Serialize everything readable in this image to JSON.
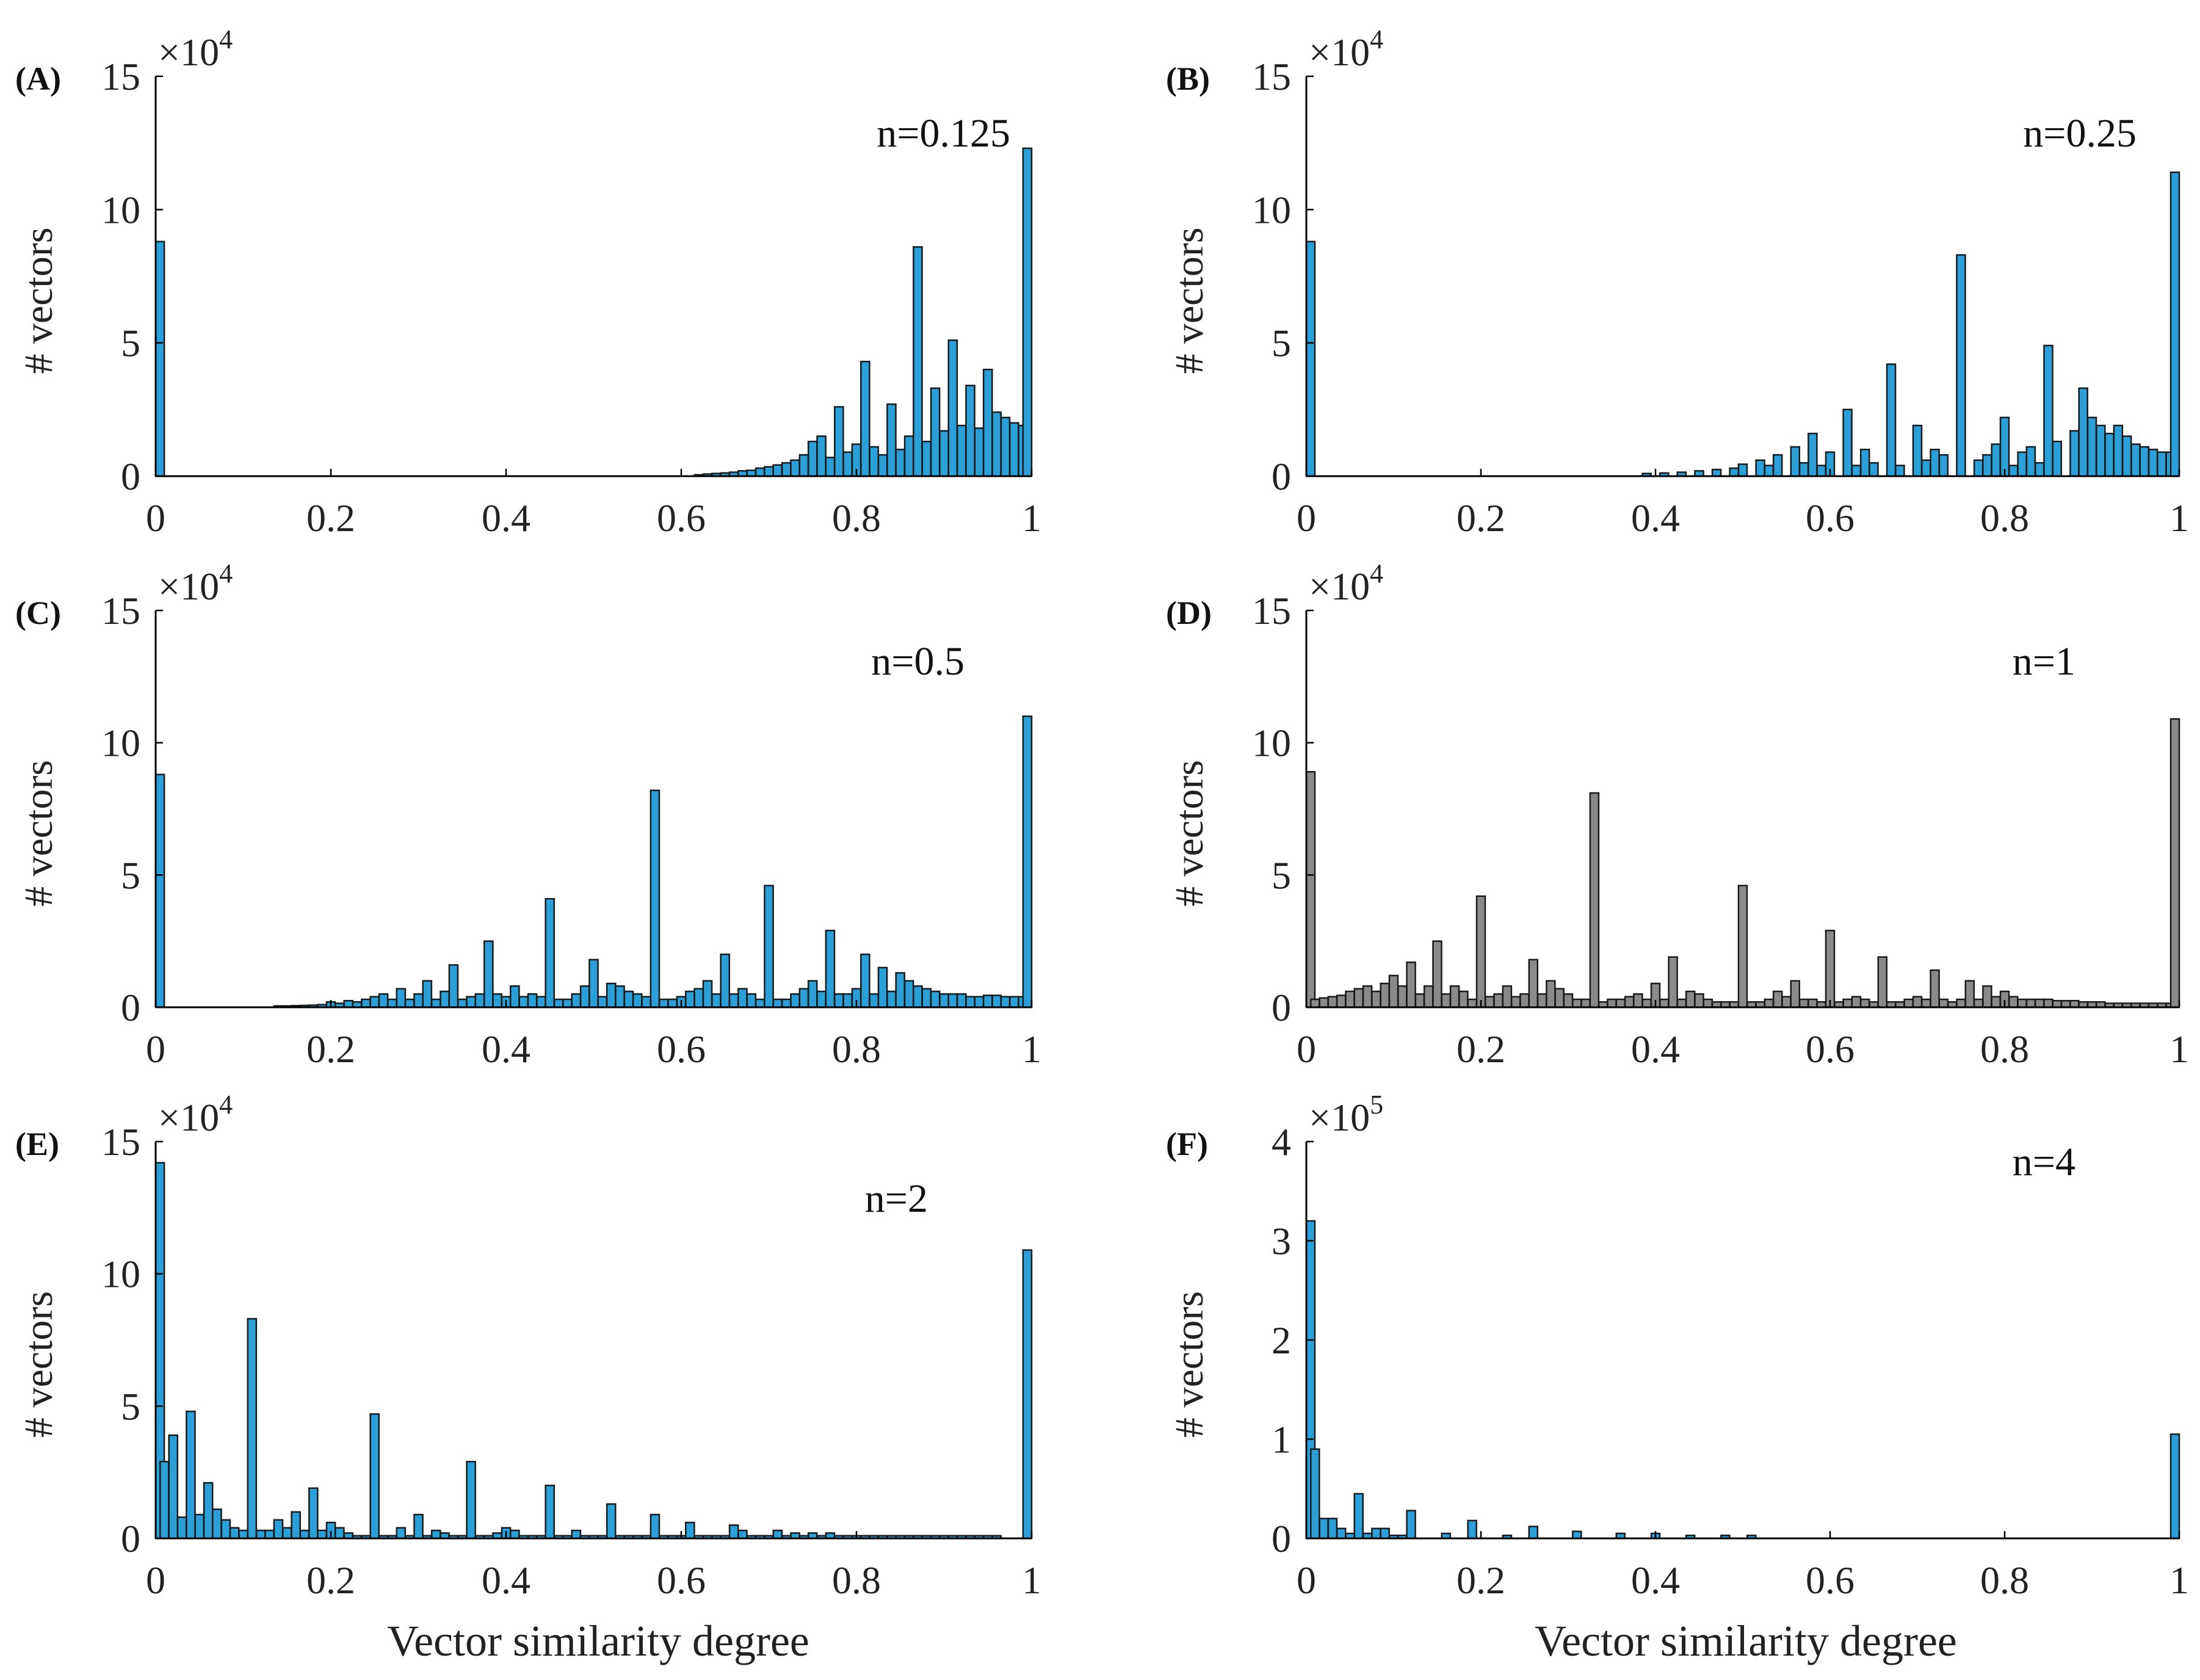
{
  "figure": {
    "xlabel": "Vector similarity degree",
    "ylabel": "# vectors",
    "bar_stroke": "#1a1a1a",
    "axis_color": "#000000"
  },
  "chart_data": [
    {
      "type": "bar",
      "panel": "(A)",
      "annotation": "n=0.125",
      "title": "",
      "xlabel": "",
      "ylabel": "# vectors",
      "multiplier_base": "×10",
      "multiplier_exp": "4",
      "xlim": [
        0,
        1
      ],
      "ylim": [
        0,
        15
      ],
      "xticks": [
        "0",
        "0.2",
        "0.4",
        "0.6",
        "0.8",
        "1"
      ],
      "yticks": [
        "0",
        "5",
        "10",
        "15"
      ],
      "color": "#2a9fd8",
      "x": [
        0.0,
        0.62,
        0.63,
        0.64,
        0.65,
        0.66,
        0.67,
        0.68,
        0.69,
        0.7,
        0.71,
        0.72,
        0.73,
        0.74,
        0.75,
        0.76,
        0.77,
        0.78,
        0.79,
        0.8,
        0.81,
        0.82,
        0.83,
        0.84,
        0.85,
        0.86,
        0.87,
        0.88,
        0.89,
        0.9,
        0.91,
        0.92,
        0.93,
        0.94,
        0.95,
        0.96,
        0.97,
        0.98,
        0.99,
        1.0
      ],
      "values": [
        8.8,
        0.05,
        0.08,
        0.1,
        0.12,
        0.15,
        0.2,
        0.22,
        0.3,
        0.35,
        0.42,
        0.5,
        0.6,
        0.8,
        1.3,
        1.5,
        0.7,
        2.6,
        0.9,
        1.2,
        4.3,
        1.1,
        0.8,
        2.7,
        1.0,
        1.5,
        8.6,
        1.3,
        3.3,
        1.7,
        5.1,
        1.9,
        3.4,
        1.8,
        4.0,
        2.4,
        2.2,
        2.0,
        1.9,
        12.3
      ]
    },
    {
      "type": "bar",
      "panel": "(B)",
      "annotation": "n=0.25",
      "title": "",
      "xlabel": "",
      "ylabel": "# vectors",
      "multiplier_base": "×10",
      "multiplier_exp": "4",
      "xlim": [
        0,
        1
      ],
      "ylim": [
        0,
        15
      ],
      "xticks": [
        "0",
        "0.2",
        "0.4",
        "0.6",
        "0.8",
        "1"
      ],
      "yticks": [
        "0",
        "5",
        "10",
        "15"
      ],
      "color": "#2a9fd8",
      "x": [
        0.0,
        0.39,
        0.41,
        0.43,
        0.45,
        0.47,
        0.49,
        0.5,
        0.52,
        0.53,
        0.54,
        0.56,
        0.57,
        0.58,
        0.59,
        0.6,
        0.62,
        0.63,
        0.64,
        0.65,
        0.67,
        0.68,
        0.7,
        0.71,
        0.72,
        0.73,
        0.75,
        0.77,
        0.78,
        0.79,
        0.8,
        0.81,
        0.82,
        0.83,
        0.84,
        0.85,
        0.86,
        0.88,
        0.89,
        0.9,
        0.91,
        0.92,
        0.93,
        0.94,
        0.95,
        0.96,
        0.97,
        0.98,
        0.99,
        1.0
      ],
      "values": [
        8.8,
        0.1,
        0.12,
        0.15,
        0.2,
        0.25,
        0.3,
        0.45,
        0.6,
        0.4,
        0.8,
        1.1,
        0.5,
        1.6,
        0.4,
        0.9,
        2.5,
        0.4,
        1.0,
        0.5,
        4.2,
        0.4,
        1.9,
        0.6,
        1.0,
        0.8,
        8.3,
        0.6,
        0.8,
        1.2,
        2.2,
        0.4,
        0.9,
        1.1,
        0.5,
        4.9,
        1.3,
        1.7,
        3.3,
        2.2,
        1.9,
        1.6,
        1.9,
        1.5,
        1.2,
        1.1,
        1.0,
        0.9,
        0.9,
        11.4
      ]
    },
    {
      "type": "bar",
      "panel": "(C)",
      "annotation": "n=0.5",
      "title": "",
      "xlabel": "",
      "ylabel": "# vectors",
      "multiplier_base": "×10",
      "multiplier_exp": "4",
      "xlim": [
        0,
        1
      ],
      "ylim": [
        0,
        15
      ],
      "xticks": [
        "0",
        "0.2",
        "0.4",
        "0.6",
        "0.8",
        "1"
      ],
      "yticks": [
        "0",
        "5",
        "10",
        "15"
      ],
      "color": "#2a9fd8",
      "x": [
        0.0,
        0.14,
        0.15,
        0.16,
        0.17,
        0.18,
        0.19,
        0.2,
        0.21,
        0.22,
        0.23,
        0.24,
        0.25,
        0.26,
        0.27,
        0.28,
        0.29,
        0.3,
        0.31,
        0.32,
        0.33,
        0.34,
        0.35,
        0.36,
        0.37,
        0.38,
        0.39,
        0.4,
        0.41,
        0.42,
        0.43,
        0.44,
        0.45,
        0.46,
        0.47,
        0.48,
        0.49,
        0.5,
        0.51,
        0.52,
        0.53,
        0.54,
        0.55,
        0.56,
        0.57,
        0.58,
        0.59,
        0.6,
        0.61,
        0.62,
        0.63,
        0.64,
        0.65,
        0.66,
        0.67,
        0.68,
        0.69,
        0.7,
        0.71,
        0.72,
        0.73,
        0.74,
        0.75,
        0.76,
        0.77,
        0.78,
        0.79,
        0.8,
        0.81,
        0.82,
        0.83,
        0.84,
        0.85,
        0.86,
        0.87,
        0.88,
        0.89,
        0.9,
        0.91,
        0.92,
        0.93,
        0.94,
        0.95,
        0.96,
        0.97,
        0.98,
        0.99,
        1.0
      ],
      "values": [
        8.8,
        0.05,
        0.05,
        0.06,
        0.07,
        0.08,
        0.1,
        0.2,
        0.15,
        0.25,
        0.2,
        0.3,
        0.4,
        0.5,
        0.3,
        0.7,
        0.3,
        0.5,
        1.0,
        0.3,
        0.6,
        1.6,
        0.3,
        0.4,
        0.5,
        2.5,
        0.5,
        0.4,
        0.8,
        0.4,
        0.5,
        0.4,
        4.1,
        0.3,
        0.3,
        0.5,
        0.8,
        1.8,
        0.4,
        0.9,
        0.8,
        0.6,
        0.5,
        0.4,
        8.2,
        0.3,
        0.3,
        0.4,
        0.6,
        0.7,
        1.0,
        0.5,
        2.0,
        0.5,
        0.7,
        0.5,
        0.3,
        4.6,
        0.3,
        0.3,
        0.5,
        0.7,
        1.0,
        0.6,
        2.9,
        0.5,
        0.5,
        0.7,
        2.0,
        0.5,
        1.5,
        0.6,
        1.3,
        1.0,
        0.8,
        0.7,
        0.6,
        0.5,
        0.5,
        0.5,
        0.4,
        0.4,
        0.45,
        0.45,
        0.4,
        0.4,
        0.4,
        11.0
      ]
    },
    {
      "type": "bar",
      "panel": "(D)",
      "annotation": "n=1",
      "title": "",
      "xlabel": "",
      "ylabel": "# vectors",
      "multiplier_base": "×10",
      "multiplier_exp": "4",
      "xlim": [
        0,
        1
      ],
      "ylim": [
        0,
        15
      ],
      "xticks": [
        "0",
        "0.2",
        "0.4",
        "0.6",
        "0.8",
        "1"
      ],
      "yticks": [
        "0",
        "5",
        "10",
        "15"
      ],
      "color": "#8a8a8a",
      "x": [
        0.0,
        0.01,
        0.02,
        0.03,
        0.04,
        0.05,
        0.06,
        0.07,
        0.08,
        0.09,
        0.1,
        0.11,
        0.12,
        0.13,
        0.14,
        0.15,
        0.16,
        0.17,
        0.18,
        0.19,
        0.2,
        0.21,
        0.22,
        0.23,
        0.24,
        0.25,
        0.26,
        0.27,
        0.28,
        0.29,
        0.3,
        0.31,
        0.32,
        0.33,
        0.34,
        0.35,
        0.36,
        0.37,
        0.38,
        0.39,
        0.4,
        0.41,
        0.42,
        0.43,
        0.44,
        0.45,
        0.46,
        0.47,
        0.48,
        0.49,
        0.5,
        0.51,
        0.52,
        0.53,
        0.54,
        0.55,
        0.56,
        0.57,
        0.58,
        0.59,
        0.6,
        0.61,
        0.62,
        0.63,
        0.64,
        0.65,
        0.66,
        0.67,
        0.68,
        0.69,
        0.7,
        0.71,
        0.72,
        0.73,
        0.74,
        0.75,
        0.76,
        0.77,
        0.78,
        0.79,
        0.8,
        0.81,
        0.82,
        0.83,
        0.84,
        0.85,
        0.86,
        0.87,
        0.88,
        0.89,
        0.9,
        0.91,
        0.92,
        0.93,
        0.94,
        0.95,
        0.96,
        0.97,
        0.98,
        0.99,
        1.0
      ],
      "values": [
        8.9,
        0.3,
        0.35,
        0.4,
        0.45,
        0.6,
        0.7,
        0.8,
        0.6,
        0.9,
        1.2,
        0.8,
        1.7,
        0.5,
        0.8,
        2.5,
        0.5,
        0.8,
        0.6,
        0.3,
        4.2,
        0.4,
        0.5,
        0.8,
        0.4,
        0.5,
        1.8,
        0.5,
        1.0,
        0.7,
        0.5,
        0.3,
        0.3,
        8.1,
        0.2,
        0.3,
        0.3,
        0.4,
        0.5,
        0.3,
        0.9,
        0.3,
        1.9,
        0.3,
        0.6,
        0.5,
        0.3,
        0.2,
        0.2,
        0.2,
        4.6,
        0.2,
        0.2,
        0.3,
        0.6,
        0.4,
        1.0,
        0.3,
        0.3,
        0.2,
        2.9,
        0.2,
        0.3,
        0.4,
        0.3,
        0.2,
        1.9,
        0.2,
        0.2,
        0.3,
        0.4,
        0.3,
        1.4,
        0.3,
        0.2,
        0.3,
        1.0,
        0.3,
        0.8,
        0.4,
        0.6,
        0.4,
        0.3,
        0.3,
        0.3,
        0.3,
        0.25,
        0.25,
        0.25,
        0.2,
        0.2,
        0.2,
        0.15,
        0.15,
        0.15,
        0.15,
        0.15,
        0.15,
        0.15,
        0.15,
        10.9
      ]
    },
    {
      "type": "bar",
      "panel": "(E)",
      "annotation": "n=2",
      "title": "",
      "xlabel": "Vector similarity degree",
      "ylabel": "# vectors",
      "multiplier_base": "×10",
      "multiplier_exp": "4",
      "xlim": [
        0,
        1
      ],
      "ylim": [
        0,
        15
      ],
      "xticks": [
        "0",
        "0.2",
        "0.4",
        "0.6",
        "0.8",
        "1"
      ],
      "yticks": [
        "0",
        "5",
        "10",
        "15"
      ],
      "color": "#2a9fd8",
      "x": [
        0.0,
        0.01,
        0.02,
        0.03,
        0.04,
        0.05,
        0.06,
        0.07,
        0.08,
        0.09,
        0.1,
        0.11,
        0.12,
        0.13,
        0.14,
        0.15,
        0.16,
        0.17,
        0.18,
        0.19,
        0.2,
        0.21,
        0.22,
        0.23,
        0.24,
        0.25,
        0.26,
        0.27,
        0.28,
        0.29,
        0.3,
        0.31,
        0.32,
        0.33,
        0.34,
        0.35,
        0.36,
        0.37,
        0.38,
        0.39,
        0.4,
        0.41,
        0.42,
        0.43,
        0.44,
        0.45,
        0.46,
        0.47,
        0.48,
        0.49,
        0.5,
        0.51,
        0.52,
        0.53,
        0.54,
        0.55,
        0.56,
        0.57,
        0.58,
        0.59,
        0.6,
        0.61,
        0.62,
        0.63,
        0.64,
        0.65,
        0.66,
        0.67,
        0.68,
        0.69,
        0.7,
        0.71,
        0.72,
        0.73,
        0.74,
        0.75,
        0.76,
        0.77,
        0.78,
        0.79,
        0.8,
        0.81,
        0.82,
        0.83,
        0.84,
        0.85,
        0.86,
        0.87,
        0.88,
        0.89,
        0.9,
        0.91,
        0.92,
        0.93,
        0.94,
        0.95,
        0.96,
        1.0
      ],
      "values": [
        14.2,
        2.9,
        3.9,
        0.8,
        4.8,
        0.9,
        2.1,
        1.1,
        0.7,
        0.4,
        0.3,
        8.3,
        0.3,
        0.3,
        0.7,
        0.4,
        1.0,
        0.3,
        1.9,
        0.3,
        0.6,
        0.4,
        0.2,
        0.1,
        0.1,
        4.7,
        0.1,
        0.1,
        0.4,
        0.1,
        0.9,
        0.1,
        0.3,
        0.2,
        0.1,
        0.1,
        2.9,
        0.1,
        0.1,
        0.2,
        0.4,
        0.3,
        0.1,
        0.1,
        0.1,
        2.0,
        0.1,
        0.1,
        0.3,
        0.1,
        0.1,
        0.1,
        1.3,
        0.1,
        0.1,
        0.1,
        0.1,
        0.9,
        0.1,
        0.1,
        0.1,
        0.6,
        0.1,
        0.1,
        0.1,
        0.1,
        0.5,
        0.3,
        0.1,
        0.1,
        0.1,
        0.3,
        0.1,
        0.2,
        0.1,
        0.2,
        0.1,
        0.2,
        0.1,
        0.1,
        0.1,
        0.1,
        0.1,
        0.1,
        0.1,
        0.1,
        0.1,
        0.1,
        0.1,
        0.1,
        0.1,
        0.1,
        0.1,
        0.1,
        0.1,
        0.1,
        0.1,
        10.9
      ]
    },
    {
      "type": "bar",
      "panel": "(F)",
      "annotation": "n=4",
      "title": "",
      "xlabel": "Vector similarity degree",
      "ylabel": "# vectors",
      "multiplier_base": "×10",
      "multiplier_exp": "5",
      "xlim": [
        0,
        1
      ],
      "ylim": [
        0,
        4
      ],
      "xticks": [
        "0",
        "0.2",
        "0.4",
        "0.6",
        "0.8",
        "1"
      ],
      "yticks": [
        "0",
        "1",
        "2",
        "3",
        "4"
      ],
      "color": "#2a9fd8",
      "x": [
        0.0,
        0.01,
        0.02,
        0.03,
        0.04,
        0.05,
        0.06,
        0.07,
        0.08,
        0.09,
        0.1,
        0.11,
        0.12,
        0.16,
        0.19,
        0.23,
        0.26,
        0.31,
        0.36,
        0.4,
        0.44,
        0.48,
        0.51,
        1.0
      ],
      "values": [
        3.2,
        0.9,
        0.2,
        0.2,
        0.1,
        0.05,
        0.45,
        0.05,
        0.1,
        0.1,
        0.03,
        0.03,
        0.28,
        0.05,
        0.18,
        0.03,
        0.12,
        0.07,
        0.05,
        0.05,
        0.03,
        0.03,
        0.03,
        1.05
      ]
    }
  ]
}
